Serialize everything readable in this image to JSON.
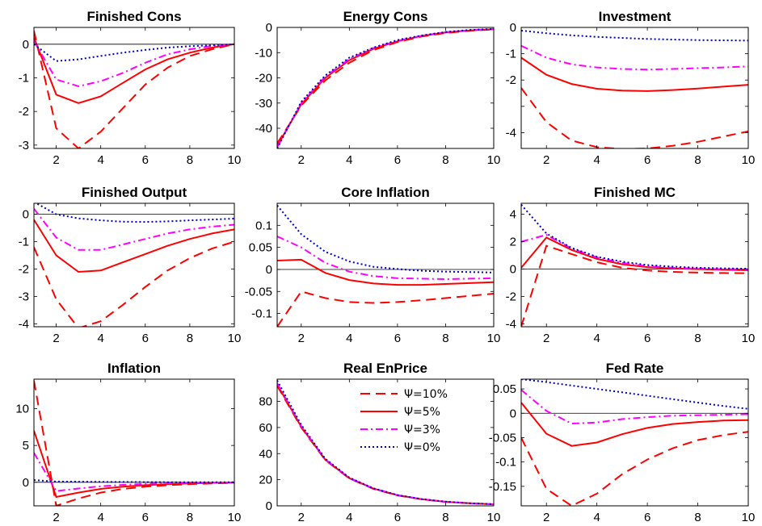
{
  "series_styles": [
    {
      "name": "Ψ=10%",
      "color": "#ff0000",
      "dash": "12,7",
      "width": 2
    },
    {
      "name": "Ψ=5%",
      "color": "#ff0000",
      "dash": "",
      "width": 2
    },
    {
      "name": "Ψ=3%",
      "color": "#ff00ff",
      "dash": "9,4,2,4",
      "width": 2
    },
    {
      "name": "Ψ=0%",
      "color": "#0000cc",
      "dash": "2,3",
      "width": 2
    }
  ],
  "chart_data": [
    {
      "type": "line",
      "title": "Finished Cons",
      "x": [
        1,
        2,
        3,
        4,
        5,
        6,
        7,
        8,
        9,
        10
      ],
      "xlim": [
        1,
        10
      ],
      "ylim": [
        -3.1,
        0.5
      ],
      "xticks": [
        2,
        4,
        6,
        8,
        10
      ],
      "yticks": [
        -3,
        -2,
        -1,
        0
      ],
      "ytick_labels": [
        "-3",
        "-2",
        "-1",
        "0"
      ],
      "zero_line": true,
      "series": [
        {
          "values": [
            0.4,
            -2.5,
            -3.1,
            -2.6,
            -1.9,
            -1.2,
            -0.7,
            -0.35,
            -0.15,
            0
          ]
        },
        {
          "values": [
            0.2,
            -1.5,
            -1.75,
            -1.55,
            -1.15,
            -0.75,
            -0.45,
            -0.25,
            -0.1,
            0
          ]
        },
        {
          "values": [
            0.1,
            -1.05,
            -1.25,
            -1.1,
            -0.85,
            -0.55,
            -0.3,
            -0.15,
            -0.05,
            0
          ]
        },
        {
          "values": [
            0,
            -0.5,
            -0.45,
            -0.35,
            -0.25,
            -0.17,
            -0.1,
            -0.06,
            -0.03,
            0
          ]
        }
      ]
    },
    {
      "type": "line",
      "title": "Energy Cons",
      "x": [
        1,
        2,
        3,
        4,
        5,
        6,
        7,
        8,
        9,
        10
      ],
      "xlim": [
        1,
        10
      ],
      "ylim": [
        -48,
        0
      ],
      "xticks": [
        2,
        4,
        6,
        8,
        10
      ],
      "yticks": [
        -40,
        -30,
        -20,
        -10,
        0
      ],
      "ytick_labels": [
        "-40",
        "-30",
        "-20",
        "-10",
        "0"
      ],
      "zero_line": true,
      "series": [
        {
          "values": [
            -46,
            -31,
            -21,
            -14,
            -9,
            -5.8,
            -3.6,
            -2.2,
            -1.3,
            -0.8
          ]
        },
        {
          "values": [
            -47,
            -30.5,
            -20,
            -13,
            -8.5,
            -5.5,
            -3.4,
            -2,
            -1.2,
            -0.7
          ]
        },
        {
          "values": [
            -47.5,
            -30,
            -19.5,
            -12.5,
            -8.2,
            -5.3,
            -3.3,
            -1.9,
            -1.1,
            -0.6
          ]
        },
        {
          "values": [
            -48,
            -29.5,
            -19,
            -12,
            -8,
            -5,
            -3.2,
            -1.8,
            -1,
            -0.6
          ]
        }
      ]
    },
    {
      "type": "line",
      "title": "Investment",
      "x": [
        1,
        2,
        3,
        4,
        5,
        6,
        7,
        8,
        9,
        10
      ],
      "xlim": [
        1,
        10
      ],
      "ylim": [
        -4.6,
        0
      ],
      "xticks": [
        2,
        4,
        6,
        8,
        10
      ],
      "yticks": [
        -4,
        -3,
        -2,
        -1,
        0
      ],
      "ytick_labels": [
        "-4",
        "-2",
        "-1",
        "0"
      ],
      "ytick_values_shown": [
        -4,
        -2,
        -1,
        0
      ],
      "zero_line": false,
      "series": [
        {
          "values": [
            -2.3,
            -3.6,
            -4.3,
            -4.55,
            -4.62,
            -4.6,
            -4.5,
            -4.35,
            -4.15,
            -3.95
          ]
        },
        {
          "values": [
            -1.15,
            -1.8,
            -2.15,
            -2.33,
            -2.4,
            -2.42,
            -2.38,
            -2.32,
            -2.25,
            -2.18
          ]
        },
        {
          "values": [
            -0.7,
            -1.15,
            -1.4,
            -1.52,
            -1.58,
            -1.6,
            -1.58,
            -1.55,
            -1.52,
            -1.48
          ]
        },
        {
          "values": [
            -0.12,
            -0.22,
            -0.3,
            -0.36,
            -0.4,
            -0.44,
            -0.46,
            -0.48,
            -0.49,
            -0.5
          ]
        }
      ]
    },
    {
      "type": "line",
      "title": "Finished Output",
      "x": [
        1,
        2,
        3,
        4,
        5,
        6,
        7,
        8,
        9,
        10
      ],
      "xlim": [
        1,
        10
      ],
      "ylim": [
        -4.1,
        0.4
      ],
      "xticks": [
        2,
        4,
        6,
        8,
        10
      ],
      "yticks": [
        -4,
        -3,
        -2,
        -1,
        0
      ],
      "ytick_labels": [
        "-4",
        "-3",
        "-2",
        "-1",
        "0"
      ],
      "zero_line": true,
      "series": [
        {
          "values": [
            -1.2,
            -3.1,
            -4.15,
            -3.9,
            -3.3,
            -2.65,
            -2.05,
            -1.6,
            -1.25,
            -1
          ]
        },
        {
          "values": [
            -0.2,
            -1.5,
            -2.1,
            -2.05,
            -1.75,
            -1.45,
            -1.15,
            -0.9,
            -0.7,
            -0.55
          ]
        },
        {
          "values": [
            0.2,
            -0.85,
            -1.3,
            -1.3,
            -1.1,
            -0.9,
            -0.7,
            -0.55,
            -0.45,
            -0.38
          ]
        },
        {
          "values": [
            0.45,
            0,
            -0.15,
            -0.22,
            -0.27,
            -0.28,
            -0.26,
            -0.22,
            -0.19,
            -0.16
          ]
        }
      ]
    },
    {
      "type": "line",
      "title": "Core Inflation",
      "x": [
        1,
        2,
        3,
        4,
        5,
        6,
        7,
        8,
        9,
        10
      ],
      "xlim": [
        1,
        10
      ],
      "ylim": [
        -0.13,
        0.15
      ],
      "xticks": [
        2,
        4,
        6,
        8,
        10
      ],
      "yticks": [
        -0.1,
        -0.05,
        0,
        0.05,
        0.1
      ],
      "ytick_labels": [
        "-0.1",
        "-0.05",
        "0",
        "0.05",
        "0.1"
      ],
      "zero_line": true,
      "series": [
        {
          "values": [
            -0.13,
            -0.05,
            -0.065,
            -0.074,
            -0.076,
            -0.074,
            -0.07,
            -0.065,
            -0.06,
            -0.055
          ]
        },
        {
          "values": [
            0.02,
            0.022,
            -0.008,
            -0.024,
            -0.032,
            -0.035,
            -0.035,
            -0.033,
            -0.031,
            -0.029
          ]
        },
        {
          "values": [
            0.075,
            0.05,
            0.015,
            -0.005,
            -0.015,
            -0.02,
            -0.021,
            -0.022,
            -0.021,
            -0.02
          ]
        },
        {
          "values": [
            0.145,
            0.08,
            0.04,
            0.018,
            0.006,
            0.001,
            -0.003,
            -0.005,
            -0.006,
            -0.007
          ]
        }
      ]
    },
    {
      "type": "line",
      "title": "Finished MC",
      "x": [
        1,
        2,
        3,
        4,
        5,
        6,
        7,
        8,
        9,
        10
      ],
      "xlim": [
        1,
        10
      ],
      "ylim": [
        -4.2,
        4.8
      ],
      "xticks": [
        2,
        4,
        6,
        8,
        10
      ],
      "yticks": [
        -4,
        -2,
        0,
        2,
        4
      ],
      "ytick_labels": [
        "-4",
        "-2",
        "0",
        "2",
        "4"
      ],
      "zero_line": true,
      "series": [
        {
          "values": [
            -4.2,
            1.7,
            1.1,
            0.5,
            0.1,
            -0.1,
            -0.2,
            -0.25,
            -0.28,
            -0.3
          ]
        },
        {
          "values": [
            0.1,
            2.3,
            1.4,
            0.75,
            0.35,
            0.15,
            0.05,
            0,
            -0.05,
            -0.08
          ]
        },
        {
          "values": [
            2,
            2.5,
            1.5,
            0.85,
            0.45,
            0.22,
            0.1,
            0.04,
            0,
            -0.02
          ]
        },
        {
          "values": [
            4.7,
            2.6,
            1.55,
            0.9,
            0.55,
            0.3,
            0.18,
            0.1,
            0.06,
            0.03
          ]
        }
      ]
    },
    {
      "type": "line",
      "title": "Inflation",
      "x": [
        1,
        2,
        3,
        4,
        5,
        6,
        7,
        8,
        9,
        10
      ],
      "xlim": [
        1,
        10
      ],
      "ylim": [
        -3.2,
        14
      ],
      "xticks": [
        2,
        4,
        6,
        8,
        10
      ],
      "yticks": [
        0,
        5,
        10
      ],
      "ytick_labels": [
        "0",
        "5",
        "10"
      ],
      "zero_line": true,
      "series": [
        {
          "values": [
            13.8,
            -3.2,
            -2.2,
            -1.4,
            -0.9,
            -0.6,
            -0.4,
            -0.25,
            -0.15,
            -0.08
          ]
        },
        {
          "values": [
            7,
            -2,
            -1.4,
            -0.9,
            -0.6,
            -0.4,
            -0.25,
            -0.15,
            -0.08,
            -0.04
          ]
        },
        {
          "values": [
            4,
            -1.2,
            -0.85,
            -0.55,
            -0.35,
            -0.22,
            -0.14,
            -0.08,
            -0.05,
            -0.02
          ]
        },
        {
          "values": [
            0.3,
            0.1,
            0.08,
            0.05,
            0.04,
            0.02,
            0.01,
            0,
            0,
            0
          ]
        }
      ]
    },
    {
      "type": "line",
      "title": "Real EnPrice",
      "x": [
        1,
        2,
        3,
        4,
        5,
        6,
        7,
        8,
        9,
        10
      ],
      "xlim": [
        1,
        10
      ],
      "ylim": [
        0,
        97
      ],
      "xticks": [
        2,
        4,
        6,
        8,
        10
      ],
      "yticks": [
        0,
        20,
        40,
        60,
        80
      ],
      "ytick_labels": [
        "0",
        "20",
        "40",
        "60",
        "80"
      ],
      "zero_line": false,
      "legend": {
        "position": "top-right"
      },
      "series": [
        {
          "values": [
            92,
            60,
            35,
            21,
            13,
            8,
            5,
            3,
            2,
            1.2
          ]
        },
        {
          "values": [
            93,
            60.5,
            35.3,
            21.2,
            13.2,
            8.1,
            5.1,
            3.1,
            2,
            1.2
          ]
        },
        {
          "values": [
            94,
            61,
            35.5,
            21.4,
            13.3,
            8.2,
            5.2,
            3.1,
            2,
            1.2
          ]
        },
        {
          "values": [
            96,
            62,
            36,
            21.6,
            13.4,
            8.3,
            5.2,
            3.2,
            2,
            1.3
          ]
        }
      ]
    },
    {
      "type": "line",
      "title": "Fed Rate",
      "x": [
        1,
        2,
        3,
        4,
        5,
        6,
        7,
        8,
        9,
        10
      ],
      "xlim": [
        1,
        10
      ],
      "ylim": [
        -0.19,
        0.07
      ],
      "xticks": [
        2,
        4,
        6,
        8,
        10
      ],
      "yticks": [
        -0.15,
        -0.1,
        -0.05,
        0,
        0.05
      ],
      "ytick_labels": [
        "-0.15",
        "-0.1",
        "-0.05",
        "0",
        "0.05"
      ],
      "zero_line": true,
      "series": [
        {
          "values": [
            -0.05,
            -0.155,
            -0.19,
            -0.165,
            -0.125,
            -0.095,
            -0.072,
            -0.055,
            -0.045,
            -0.038
          ]
        },
        {
          "values": [
            0.022,
            -0.042,
            -0.067,
            -0.06,
            -0.043,
            -0.03,
            -0.022,
            -0.018,
            -0.015,
            -0.014
          ]
        },
        {
          "values": [
            0.048,
            0.005,
            -0.021,
            -0.019,
            -0.012,
            -0.008,
            -0.005,
            -0.004,
            -0.003,
            -0.002
          ]
        },
        {
          "values": [
            0.07,
            0.064,
            0.057,
            0.05,
            0.043,
            0.036,
            0.029,
            0.022,
            0.015,
            0.009
          ]
        }
      ]
    }
  ]
}
